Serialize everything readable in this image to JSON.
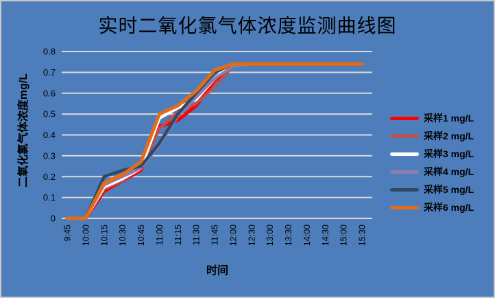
{
  "window": {
    "background_color": "#4D7EBB",
    "border_color": "#C9C9C9"
  },
  "chart_data": {
    "type": "line",
    "title": "实时二氧化氯气体浓度监测曲线图",
    "xlabel": "时间",
    "ylabel": "二氧化氯气体浓度mg/L",
    "ylim": [
      0,
      0.8
    ],
    "ytick_labels": [
      "0",
      "0.1",
      "0.2",
      "0.3",
      "0.4",
      "0.5",
      "0.6",
      "0.7",
      "0.8"
    ],
    "grid": true,
    "gridline_color": "#D9D9D9",
    "legend_position": "right",
    "categories": [
      "9:45",
      "10:00",
      "10:15",
      "10:30",
      "10:45",
      "11:00",
      "11:15",
      "11:30",
      "11:45",
      "12:00",
      "12:30",
      "13:00",
      "13:30",
      "14:00",
      "14:30",
      "15:00",
      "15:30"
    ],
    "series": [
      {
        "name": "采样1 mg/L",
        "color": "#FE0000",
        "values": [
          0,
          0,
          0.13,
          0.18,
          0.23,
          0.44,
          0.47,
          0.54,
          0.66,
          0.74,
          0.74,
          0.74,
          0.74,
          0.74,
          0.74,
          0.74,
          0.74
        ]
      },
      {
        "name": "采样2 mg/L",
        "color": "#C0504D",
        "values": [
          0,
          0,
          0.14,
          0.18,
          0.24,
          0.43,
          0.51,
          0.55,
          0.63,
          0.73,
          0.74,
          0.74,
          0.74,
          0.74,
          0.74,
          0.74,
          0.74
        ]
      },
      {
        "name": "采样3 mg/L",
        "color": "#FFFFFF",
        "values": [
          0,
          0,
          0.15,
          0.19,
          0.24,
          0.48,
          0.53,
          0.57,
          0.67,
          0.74,
          0.74,
          0.74,
          0.74,
          0.74,
          0.74,
          0.74,
          0.74
        ]
      },
      {
        "name": "采样4 mg/L",
        "color": "#8E7CAE",
        "values": [
          0,
          0,
          0.16,
          0.2,
          0.24,
          0.35,
          0.49,
          0.58,
          0.67,
          0.73,
          0.74,
          0.74,
          0.74,
          0.74,
          0.74,
          0.74,
          0.74
        ]
      },
      {
        "name": "采样5 mg/L",
        "color": "#2C4A68",
        "values": [
          0,
          0,
          0.2,
          0.23,
          0.25,
          0.36,
          0.5,
          0.6,
          0.7,
          0.74,
          0.74,
          0.74,
          0.74,
          0.74,
          0.74,
          0.74,
          0.74
        ]
      },
      {
        "name": "采样6 mg/L",
        "color": "#E36C17",
        "values": [
          0,
          0,
          0.17,
          0.21,
          0.27,
          0.5,
          0.54,
          0.61,
          0.71,
          0.74,
          0.74,
          0.74,
          0.74,
          0.74,
          0.74,
          0.74,
          0.74
        ]
      }
    ]
  }
}
